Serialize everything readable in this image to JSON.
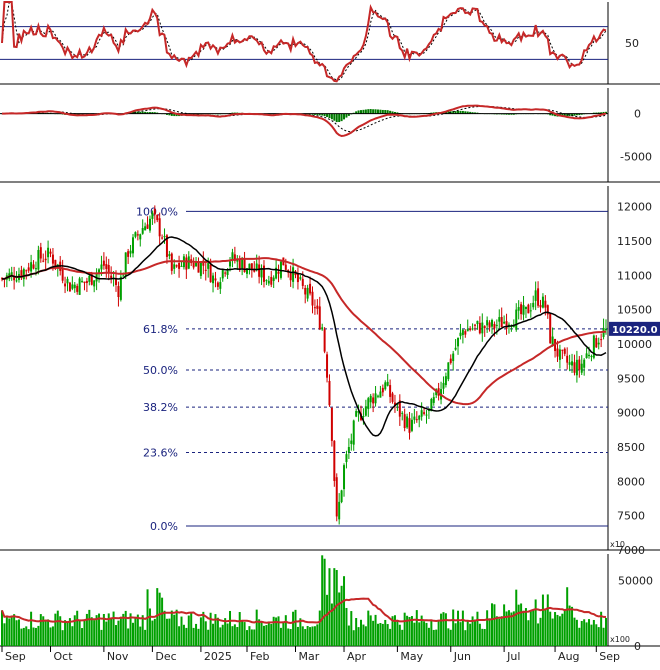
{
  "chart_data": {
    "type": "candlestick",
    "x_axis": {
      "months": [
        "Sep",
        "Oct",
        "Nov",
        "Dec",
        "2025",
        "Feb",
        "Mar",
        "Apr",
        "May",
        "Jun",
        "Jul",
        "Aug",
        "Sep"
      ]
    },
    "price_panel": {
      "y_ticks": [
        "12000",
        "11500",
        "11000",
        "10500",
        "10000",
        "9500",
        "9000",
        "8500",
        "8000",
        "7500",
        "7000"
      ],
      "ylim": [
        7000,
        12300
      ],
      "multiplier_label": "x10",
      "last_price_label": "10220.0",
      "last_price": 10220,
      "fib_levels": [
        {
          "label": "100.0%",
          "value": 11930,
          "style": "solid"
        },
        {
          "label": "61.8%",
          "value": 10220,
          "style": "dashed"
        },
        {
          "label": "50.0%",
          "value": 9620,
          "style": "dashed"
        },
        {
          "label": "38.2%",
          "value": 9080,
          "style": "dashed"
        },
        {
          "label": "23.6%",
          "value": 8420,
          "style": "dashed"
        },
        {
          "label": "0.0%",
          "value": 7350,
          "style": "solid"
        }
      ],
      "ma_long_color": "#c62828",
      "ma_short_color": "#000000",
      "candle_up_color": "#00a000",
      "candle_down_color": "#d00000"
    },
    "rsi_panel": {
      "y_ticks": [
        "50"
      ],
      "ylim": [
        0,
        100
      ],
      "overbought": 70,
      "oversold": 30,
      "line_color": "#c62828"
    },
    "macd_panel": {
      "y_ticks": [
        "0",
        "-5000"
      ],
      "ylim": [
        -8000,
        3000
      ],
      "macd_color": "#c62828",
      "hist_color": "#007a00"
    },
    "volume_panel": {
      "y_ticks": [
        "50000",
        "0"
      ],
      "ylim": [
        0,
        70000
      ],
      "multiplier_label": "x100",
      "bar_color": "#00a000",
      "ma_color": "#c62828"
    }
  }
}
